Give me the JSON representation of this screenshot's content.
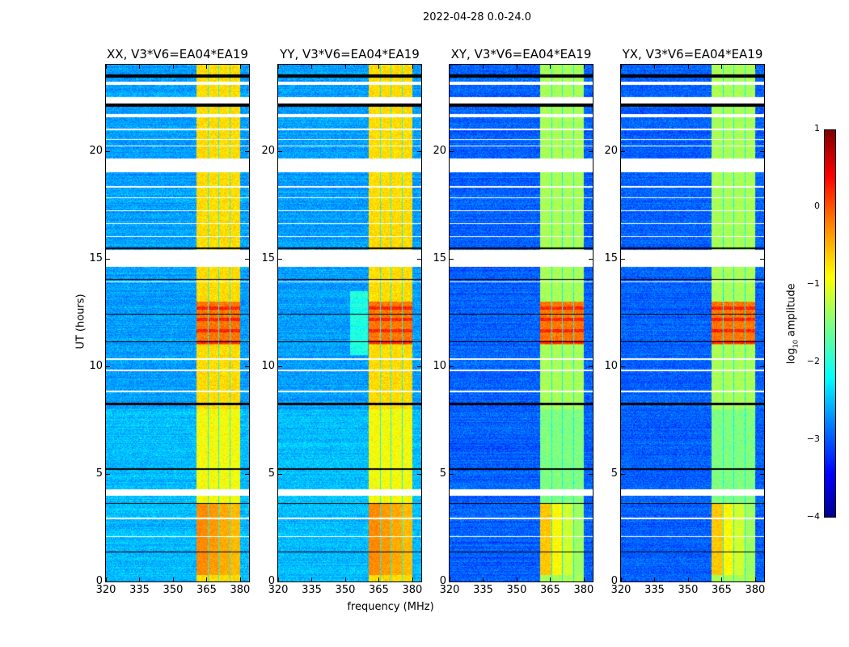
{
  "suptitle": "2022-04-28 0.0-24.0",
  "chart_data": {
    "type": "heatmap",
    "title": "2022-04-28 0.0-24.0",
    "xlabel": "frequency (MHz)",
    "ylabel": "UT (hours)",
    "xlim": [
      320,
      384
    ],
    "ylim": [
      0,
      24
    ],
    "xticks": [
      "320",
      "335",
      "350",
      "365",
      "380"
    ],
    "yticks": [
      "0",
      "5",
      "10",
      "15",
      "20"
    ],
    "panels": [
      {
        "title": "XX, V3*V6=EA04*EA19",
        "band_level": -0.7,
        "low_time_level": -0.3,
        "background": -2.6
      },
      {
        "title": "YY, V3*V6=EA04*EA19",
        "band_level": -0.7,
        "low_time_level": -0.3,
        "background": -2.6
      },
      {
        "title": "XY, V3*V6=EA04*EA19",
        "band_level": -1.3,
        "low_time_level": -0.6,
        "background": -2.9
      },
      {
        "title": "YX, V3*V6=EA04*EA19",
        "band_level": -1.3,
        "low_time_level": -0.6,
        "background": -2.9
      }
    ],
    "rfi_subbands_mhz": [
      [
        360.4,
        365.4
      ],
      [
        366.0,
        370.3
      ],
      [
        370.6,
        375.3
      ],
      [
        375.6,
        380.0
      ]
    ],
    "strong_rfi_hours": [
      [
        11.0,
        13.0
      ],
      [
        0.3,
        3.6
      ]
    ],
    "flagged_hours": [
      [
        23.05,
        23.2
      ],
      [
        22.2,
        22.5
      ],
      [
        21.55,
        21.7
      ],
      [
        20.95,
        21.05
      ],
      [
        20.2,
        20.25
      ],
      [
        20.5,
        20.55
      ],
      [
        19.0,
        19.66
      ],
      [
        18.3,
        18.35
      ],
      [
        17.8,
        17.85
      ],
      [
        17.2,
        17.25
      ],
      [
        16.6,
        16.65
      ],
      [
        16.0,
        16.05
      ],
      [
        14.6,
        15.4
      ],
      [
        13.9,
        13.95
      ],
      [
        10.3,
        10.35
      ],
      [
        9.75,
        9.85
      ],
      [
        8.8,
        8.85
      ],
      [
        4.0,
        4.27
      ],
      [
        2.9,
        2.95
      ],
      [
        2.05,
        2.1
      ]
    ],
    "zero_hours": [
      [
        23.4,
        23.55
      ],
      [
        22.05,
        22.2
      ],
      [
        15.45,
        15.5
      ],
      [
        14.0,
        14.05
      ],
      [
        12.4,
        12.45
      ],
      [
        11.1,
        11.15
      ],
      [
        8.2,
        8.3
      ],
      [
        5.2,
        5.25
      ],
      [
        3.6,
        3.65
      ],
      [
        1.35,
        1.4
      ]
    ],
    "colorbar": {
      "label_prefix": "log",
      "label_sub": "10",
      "label_suffix": " amplitude",
      "range": [
        -4,
        1
      ],
      "ticks": [
        "1",
        "0",
        "−1",
        "−2",
        "−3",
        "−4"
      ],
      "colormap": "jet"
    }
  }
}
